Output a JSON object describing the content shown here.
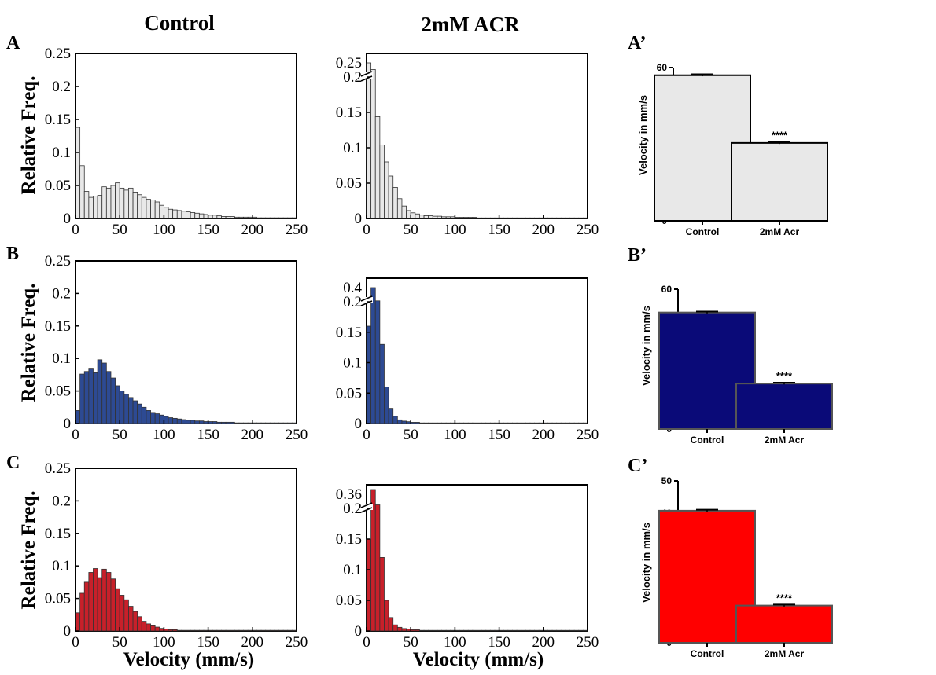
{
  "column_titles": {
    "control": "Control",
    "acr": "2mM ACR"
  },
  "histogram_ylabel": "Relative Freq.",
  "histogram_xlabel": "Velocity (mm/s)",
  "bar_ylabel": "Velocity in mm/s",
  "colors": {
    "white": "#e8e8e8",
    "blue": "#2d4a93",
    "red": "#c8202a",
    "bar_blue": "#0a0a78",
    "bar_red": "#ff0000"
  },
  "chart_data": [
    {
      "id": "A-control",
      "panel_label": "A",
      "type": "bar",
      "color_key": "white",
      "x_start": 0,
      "bin_width": 5,
      "xlim": [
        0,
        250
      ],
      "xticks": [
        "0",
        "50",
        "100",
        "150",
        "200",
        "250"
      ],
      "ylim": [
        0,
        0.25
      ],
      "yticks": [
        "0",
        "0.05",
        "0.1",
        "0.15",
        "0.2",
        "0.25"
      ],
      "values": [
        0.138,
        0.08,
        0.041,
        0.032,
        0.034,
        0.035,
        0.048,
        0.046,
        0.05,
        0.054,
        0.046,
        0.043,
        0.046,
        0.04,
        0.036,
        0.032,
        0.029,
        0.028,
        0.025,
        0.02,
        0.017,
        0.014,
        0.013,
        0.012,
        0.011,
        0.01,
        0.009,
        0.008,
        0.007,
        0.006,
        0.005,
        0.005,
        0.004,
        0.003,
        0.003,
        0.003,
        0.002,
        0.002,
        0.002,
        0.002,
        0.002,
        0.001,
        0.001,
        0.001,
        0.001,
        0.001,
        0.001,
        0.001,
        0.001,
        0.001
      ]
    },
    {
      "id": "A-acr",
      "type": "bar",
      "color_key": "white",
      "x_start": 0,
      "bin_width": 5,
      "xlim": [
        0,
        250
      ],
      "xticks": [
        "0",
        "50",
        "100",
        "150",
        "200",
        "250"
      ],
      "ylim": [
        0,
        0.25
      ],
      "yticks": [
        "0",
        "0.05",
        "0.1",
        "0.15",
        "0.2"
      ],
      "break_label": "0.25",
      "break_max": 0.27,
      "values": [
        0.265,
        0.258,
        0.18,
        0.13,
        0.1,
        0.075,
        0.055,
        0.035,
        0.022,
        0.014,
        0.01,
        0.008,
        0.006,
        0.005,
        0.005,
        0.004,
        0.004,
        0.003,
        0.003,
        0.003,
        0.002,
        0.002,
        0.002,
        0.002,
        0.002,
        0.001,
        0.001,
        0.001,
        0.001,
        0.001,
        0.001,
        0.001,
        0.001,
        0.001,
        0.001,
        0.001,
        0.001,
        0.001,
        0.001,
        0.001,
        0.001,
        0.001,
        0.001,
        0.001,
        0.001,
        0.001,
        0.001,
        0.001,
        0.001,
        0.001
      ]
    },
    {
      "id": "A-prime",
      "panel_label": "A’",
      "type": "bar",
      "color_key": "white",
      "categories": [
        "Control",
        "2mM Acr"
      ],
      "values": [
        57,
        30.5
      ],
      "errors": [
        0.4,
        0.4
      ],
      "annotation": "****",
      "ylim": [
        0,
        60
      ],
      "yticks": [
        "0",
        "20",
        "40",
        "60"
      ]
    },
    {
      "id": "B-control",
      "panel_label": "B",
      "type": "bar",
      "color_key": "blue",
      "x_start": 0,
      "bin_width": 5,
      "xlim": [
        0,
        250
      ],
      "xticks": [
        "0",
        "50",
        "100",
        "150",
        "200",
        "250"
      ],
      "ylim": [
        0,
        0.25
      ],
      "yticks": [
        "0",
        "0.05",
        "0.1",
        "0.15",
        "0.2",
        "0.25"
      ],
      "values": [
        0.02,
        0.076,
        0.08,
        0.085,
        0.078,
        0.098,
        0.093,
        0.08,
        0.07,
        0.058,
        0.05,
        0.045,
        0.04,
        0.035,
        0.03,
        0.025,
        0.02,
        0.017,
        0.015,
        0.013,
        0.011,
        0.009,
        0.008,
        0.007,
        0.006,
        0.005,
        0.005,
        0.004,
        0.004,
        0.003,
        0.003,
        0.003,
        0.002,
        0.002,
        0.002,
        0.002,
        0.001,
        0.001,
        0.001,
        0.001,
        0.001,
        0.001,
        0.001,
        0.001,
        0.001,
        0.001,
        0.001,
        0.001,
        0.001,
        0.001
      ]
    },
    {
      "id": "B-acr",
      "type": "bar",
      "color_key": "blue",
      "x_start": 0,
      "bin_width": 5,
      "xlim": [
        0,
        250
      ],
      "xticks": [
        "0",
        "50",
        "100",
        "150",
        "200",
        "250"
      ],
      "ylim": [
        0,
        0.2
      ],
      "yticks": [
        "0",
        "0.05",
        "0.1",
        "0.15",
        "0.2"
      ],
      "break_label": "0.4",
      "break_max": 0.4,
      "values": [
        0.16,
        0.35,
        0.21,
        0.13,
        0.06,
        0.025,
        0.012,
        0.006,
        0.004,
        0.003,
        0.002,
        0.002,
        0.001,
        0.001,
        0.001,
        0.001,
        0.001,
        0.001,
        0.001,
        0.001,
        0.001,
        0.001,
        0.001,
        0.001,
        0.001,
        0.001,
        0.001,
        0.001,
        0.001,
        0.001,
        0.001,
        0.001,
        0.001,
        0.001,
        0.001,
        0.001,
        0.001,
        0.001,
        0.001,
        0.001,
        0.001,
        0.001,
        0.001,
        0.001,
        0.001,
        0.001,
        0.001,
        0.001,
        0.001,
        0.001
      ]
    },
    {
      "id": "B-prime",
      "panel_label": "B’",
      "type": "bar",
      "color_key": "bar_blue",
      "categories": [
        "Control",
        "2mM Acr"
      ],
      "values": [
        50,
        19.5
      ],
      "errors": [
        0.4,
        0.4
      ],
      "annotation": "****",
      "ylim": [
        0,
        60
      ],
      "yticks": [
        "0",
        "20",
        "40",
        "60"
      ]
    },
    {
      "id": "C-control",
      "panel_label": "C",
      "type": "bar",
      "color_key": "red",
      "x_start": 0,
      "bin_width": 5,
      "xlim": [
        0,
        250
      ],
      "xticks": [
        "0",
        "50",
        "100",
        "150",
        "200",
        "250"
      ],
      "ylim": [
        0,
        0.25
      ],
      "yticks": [
        "0",
        "0.05",
        "0.1",
        "0.15",
        "0.2",
        "0.25"
      ],
      "values": [
        0.028,
        0.058,
        0.075,
        0.09,
        0.096,
        0.082,
        0.095,
        0.09,
        0.08,
        0.065,
        0.055,
        0.048,
        0.038,
        0.03,
        0.022,
        0.015,
        0.011,
        0.008,
        0.006,
        0.004,
        0.003,
        0.002,
        0.002,
        0.001,
        0.001,
        0.001,
        0.001,
        0.001,
        0.001,
        0.001,
        0.001,
        0.001,
        0.001,
        0.001,
        0.001,
        0.001,
        0.001,
        0.001,
        0.001,
        0.001,
        0.001,
        0.001,
        0.001,
        0.001,
        0.001,
        0.001,
        0.001,
        0.001,
        0.001,
        0.001
      ]
    },
    {
      "id": "C-acr",
      "type": "bar",
      "color_key": "red",
      "x_start": 0,
      "bin_width": 5,
      "xlim": [
        0,
        250
      ],
      "xticks": [
        "0",
        "50",
        "100",
        "150",
        "200",
        "250"
      ],
      "ylim": [
        0,
        0.2
      ],
      "yticks": [
        "0",
        "0.05",
        "0.1",
        "0.15",
        "0.2"
      ],
      "break_label": "0.36",
      "break_max": 0.36,
      "values": [
        0.15,
        0.36,
        0.23,
        0.12,
        0.05,
        0.022,
        0.01,
        0.006,
        0.004,
        0.003,
        0.002,
        0.002,
        0.001,
        0.001,
        0.001,
        0.001,
        0.001,
        0.001,
        0.001,
        0.001,
        0.001,
        0.001,
        0.001,
        0.001,
        0.001,
        0.001,
        0.001,
        0.001,
        0.001,
        0.001,
        0.001,
        0.001,
        0.001,
        0.001,
        0.001,
        0.001,
        0.001,
        0.001,
        0.001,
        0.001,
        0.001,
        0.001,
        0.001,
        0.001,
        0.001,
        0.001,
        0.001,
        0.001,
        0.001,
        0.001
      ]
    },
    {
      "id": "C-prime",
      "panel_label": "C’",
      "type": "bar",
      "color_key": "bar_red",
      "categories": [
        "Control",
        "2mM Acr"
      ],
      "values": [
        40.8,
        11.5
      ],
      "errors": [
        0.3,
        0.3
      ],
      "annotation": "****",
      "ylim": [
        0,
        50
      ],
      "yticks": [
        "0",
        "10",
        "20",
        "30",
        "40",
        "50"
      ]
    }
  ]
}
